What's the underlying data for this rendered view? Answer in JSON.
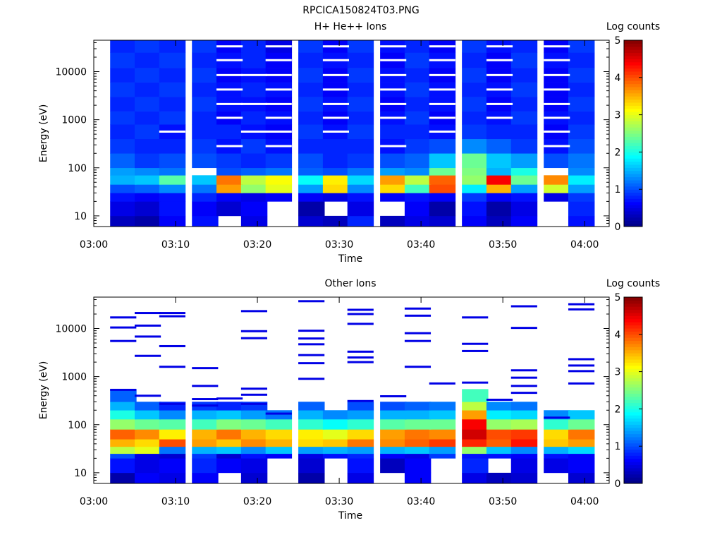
{
  "figure_title": "RPCICA150824T03.PNG",
  "chart_data": [
    {
      "type": "heatmap",
      "title": "H+ He++ Ions",
      "xlabel": "Time",
      "ylabel": "Energy (eV)",
      "yscale": "log",
      "xlim": [
        "03:00",
        "04:03"
      ],
      "ylim": [
        6,
        45000
      ],
      "xticks": [
        "03:00",
        "03:10",
        "03:20",
        "03:30",
        "03:40",
        "03:50",
        "04:00"
      ],
      "yticks": [
        "10",
        "100",
        "1000",
        "10000"
      ],
      "colorbar": {
        "label": "Log counts",
        "range": [
          0,
          5
        ],
        "ticks": [
          "0",
          "1",
          "2",
          "3",
          "4",
          "5"
        ]
      },
      "time_start": [
        "03:02",
        "03:05",
        "03:08",
        "03:12",
        "03:15",
        "03:18",
        "03:21",
        "03:25",
        "03:28",
        "03:31",
        "03:35",
        "03:38",
        "03:41",
        "03:45",
        "03:48",
        "03:51",
        "03:55",
        "03:58"
      ],
      "energy_bands": [
        {
          "range": [
            6,
            10
          ],
          "values": [
            0.3,
            0.2,
            0.6,
            0.7,
            null,
            0.5,
            null,
            0.4,
            0.3,
            0.8,
            0.3,
            0.5,
            0.4,
            0.6,
            0.3,
            0.6,
            null,
            0.7
          ]
        },
        {
          "range": [
            10,
            20
          ],
          "values": [
            0.5,
            0.4,
            0.7,
            0.6,
            0.4,
            0.6,
            null,
            0.2,
            null,
            0.5,
            null,
            0.6,
            0.2,
            0.7,
            0.2,
            0.5,
            null,
            0.8
          ]
        },
        {
          "range": [
            20,
            30
          ],
          "values": [
            0.7,
            0.6,
            0.7,
            0.8,
            0.6,
            0.5,
            0.6,
            0.6,
            0.5,
            0.7,
            0.6,
            0.7,
            0.6,
            0.9,
            0.6,
            0.7,
            0.5,
            0.9
          ]
        },
        {
          "range": [
            30,
            45
          ],
          "values": [
            1.0,
            1.1,
            1.3,
            1.2,
            3.6,
            2.6,
            3.0,
            1.4,
            3.3,
            1.3,
            3.3,
            2.2,
            4.0,
            1.8,
            3.5,
            1.4,
            2.9,
            1.4
          ]
        },
        {
          "range": [
            45,
            70
          ],
          "values": [
            1.5,
            1.6,
            2.3,
            1.6,
            3.8,
            2.8,
            3.1,
            1.9,
            3.2,
            1.7,
            3.6,
            2.8,
            3.9,
            2.6,
            4.4,
            2.4,
            3.7,
            1.8
          ]
        },
        {
          "range": [
            70,
            100
          ],
          "values": [
            1.4,
            1.3,
            1.2,
            null,
            1.0,
            1.1,
            1.2,
            1.1,
            1.0,
            1.2,
            1.4,
            1.3,
            2.4,
            2.5,
            1.5,
            2.0,
            null,
            1.3
          ]
        },
        {
          "range": [
            100,
            200
          ],
          "values": [
            1.1,
            0.9,
            1.0,
            1.0,
            0.9,
            0.8,
            0.9,
            1.0,
            0.8,
            0.9,
            1.0,
            1.1,
            1.6,
            2.4,
            1.6,
            1.4,
            1.0,
            1.2
          ]
        },
        {
          "range": [
            200,
            400
          ],
          "values": [
            0.9,
            0.8,
            0.8,
            0.9,
            0.7,
            0.9,
            0.7,
            0.8,
            0.8,
            0.8,
            0.7,
            0.9,
            1.0,
            1.3,
            1.1,
            0.9,
            0.7,
            1.0
          ]
        },
        {
          "range": [
            400,
            800
          ],
          "values": [
            0.8,
            0.9,
            0.7,
            0.8,
            0.8,
            0.7,
            0.6,
            0.9,
            0.7,
            0.9,
            0.8,
            0.8,
            0.7,
            0.9,
            0.8,
            0.8,
            0.6,
            0.9
          ]
        },
        {
          "range": [
            800,
            1500
          ],
          "values": [
            0.9,
            0.8,
            0.9,
            0.8,
            0.6,
            0.8,
            0.7,
            0.8,
            0.6,
            0.8,
            0.7,
            0.9,
            0.6,
            0.8,
            0.7,
            0.9,
            0.7,
            0.8
          ]
        },
        {
          "range": [
            1500,
            3000
          ],
          "values": [
            0.8,
            0.9,
            0.8,
            0.9,
            0.7,
            0.7,
            0.6,
            0.9,
            0.7,
            0.9,
            0.6,
            0.8,
            0.7,
            0.9,
            0.6,
            0.8,
            0.6,
            0.9
          ]
        },
        {
          "range": [
            3000,
            6000
          ],
          "values": [
            0.9,
            0.8,
            0.9,
            0.8,
            0.7,
            0.8,
            0.7,
            0.8,
            0.6,
            0.8,
            0.7,
            0.9,
            0.7,
            0.8,
            0.7,
            0.9,
            0.6,
            0.8
          ]
        },
        {
          "range": [
            6000,
            12000
          ],
          "values": [
            0.8,
            0.9,
            0.8,
            0.9,
            0.6,
            0.7,
            0.6,
            0.9,
            0.6,
            0.9,
            0.7,
            0.8,
            0.6,
            0.9,
            0.6,
            0.8,
            0.6,
            0.9
          ]
        },
        {
          "range": [
            12000,
            25000
          ],
          "values": [
            0.9,
            0.8,
            0.9,
            0.8,
            0.7,
            0.8,
            0.6,
            0.8,
            0.7,
            0.8,
            0.6,
            0.9,
            0.7,
            0.8,
            0.6,
            0.9,
            0.7,
            0.8
          ]
        },
        {
          "range": [
            25000,
            45000
          ],
          "values": [
            0.8,
            0.9,
            0.8,
            0.9,
            0.6,
            0.8,
            0.5,
            0.9,
            0.6,
            0.9,
            0.7,
            0.8,
            0.6,
            0.9,
            0.7,
            0.8,
            0.6,
            0.9
          ]
        }
      ]
    },
    {
      "type": "heatmap",
      "title": "Other Ions",
      "xlabel": "Time",
      "ylabel": "Energy (eV)",
      "yscale": "log",
      "xlim": [
        "03:00",
        "04:03"
      ],
      "ylim": [
        6,
        45000
      ],
      "xticks": [
        "03:00",
        "03:10",
        "03:20",
        "03:30",
        "03:40",
        "03:50",
        "04:00"
      ],
      "yticks": [
        "10",
        "100",
        "1000",
        "10000"
      ],
      "colorbar": {
        "label": "Log counts",
        "range": [
          0,
          5
        ],
        "ticks": [
          "0",
          "1",
          "2",
          "3",
          "4",
          "5"
        ]
      },
      "time_start": [
        "03:02",
        "03:05",
        "03:08",
        "03:12",
        "03:15",
        "03:18",
        "03:21",
        "03:25",
        "03:28",
        "03:31",
        "03:35",
        "03:38",
        "03:41",
        "03:45",
        "03:48",
        "03:51",
        "03:55",
        "03:58"
      ],
      "energy_bands": [
        {
          "range": [
            6,
            10
          ],
          "values": [
            0.2,
            0.6,
            0.5,
            0.6,
            null,
            0.4,
            null,
            0.2,
            null,
            0.5,
            null,
            0.6,
            null,
            0.5,
            0.3,
            0.4,
            null,
            0.4
          ]
        },
        {
          "range": [
            10,
            20
          ],
          "values": [
            0.7,
            0.5,
            0.6,
            0.8,
            0.6,
            0.5,
            null,
            0.4,
            null,
            0.7,
            0.3,
            0.6,
            null,
            0.8,
            null,
            0.5,
            0.5,
            0.6
          ]
        },
        {
          "range": [
            20,
            25
          ],
          "values": [
            1.0,
            0.5,
            0.4,
            0.9,
            0.4,
            0.7,
            0.6,
            0.5,
            0.7,
            0.8,
            0.6,
            0.5,
            0.9,
            0.7,
            0.7,
            0.6,
            0.7,
            0.6
          ]
        },
        {
          "range": [
            25,
            35
          ],
          "values": [
            2.8,
            3.0,
            1.2,
            1.5,
            1.6,
            1.3,
            1.6,
            1.4,
            1.5,
            1.4,
            1.5,
            1.6,
            1.4,
            2.6,
            1.6,
            1.3,
            1.5,
            1.7
          ]
        },
        {
          "range": [
            35,
            50
          ],
          "values": [
            3.5,
            3.3,
            4.0,
            3.6,
            3.4,
            3.7,
            3.5,
            3.3,
            3.4,
            3.8,
            3.7,
            3.9,
            4.1,
            4.2,
            3.9,
            4.3,
            3.4,
            3.6
          ]
        },
        {
          "range": [
            50,
            80
          ],
          "values": [
            3.9,
            3.7,
            3.2,
            3.5,
            3.8,
            3.5,
            3.3,
            3.2,
            3.0,
            3.3,
            3.6,
            3.8,
            3.7,
            4.6,
            4.0,
            4.1,
            3.3,
            3.8
          ]
        },
        {
          "range": [
            80,
            130
          ],
          "values": [
            2.6,
            2.4,
            2.3,
            2.2,
            2.5,
            2.4,
            2.2,
            2.1,
            1.9,
            2.1,
            2.3,
            2.4,
            2.4,
            4.4,
            2.6,
            2.7,
            2.1,
            2.4
          ]
        },
        {
          "range": [
            130,
            200
          ],
          "values": [
            2.0,
            1.6,
            1.3,
            1.5,
            1.6,
            1.4,
            1.2,
            1.5,
            1.3,
            1.4,
            1.5,
            1.5,
            1.6,
            3.6,
            1.8,
            1.7,
            1.3,
            1.6
          ]
        },
        {
          "range": [
            200,
            300
          ],
          "values": [
            1.5,
            1.1,
            0.8,
            0.9,
            0.8,
            0.9,
            null,
            1.1,
            null,
            1.0,
            1.0,
            1.1,
            1.2,
            2.8,
            1.3,
            1.2,
            null,
            null
          ]
        },
        {
          "range": [
            300,
            550
          ],
          "values": [
            1.1,
            null,
            null,
            null,
            null,
            null,
            null,
            null,
            null,
            null,
            null,
            null,
            null,
            2.2,
            null,
            null,
            null,
            null
          ]
        }
      ],
      "lines": [
        {
          "col": 0,
          "energies": [
            530,
            5500,
            10500,
            17000
          ]
        },
        {
          "col": 1,
          "energies": [
            400,
            2700,
            6800,
            11500,
            21000
          ]
        },
        {
          "col": 2,
          "energies": [
            270,
            1600,
            4300,
            18000,
            21000
          ]
        },
        {
          "col": 3,
          "energies": [
            250,
            340,
            640,
            1500
          ]
        },
        {
          "col": 4,
          "energies": [
            350
          ]
        },
        {
          "col": 5,
          "energies": [
            270,
            420,
            560,
            6300,
            8800,
            23000
          ]
        },
        {
          "col": 6,
          "energies": [
            170
          ]
        },
        {
          "col": 7,
          "energies": [
            900,
            1900,
            2800,
            4700,
            6200,
            9000,
            37000
          ]
        },
        {
          "col": 9,
          "energies": [
            310,
            2000,
            2500,
            3300,
            12500,
            20000,
            24500
          ]
        },
        {
          "col": 10,
          "energies": [
            390
          ]
        },
        {
          "col": 11,
          "energies": [
            1600,
            5500,
            8000,
            18500,
            26000
          ]
        },
        {
          "col": 12,
          "energies": [
            720
          ]
        },
        {
          "col": 13,
          "energies": [
            750,
            3400,
            4800,
            17000
          ]
        },
        {
          "col": 14,
          "energies": [
            330
          ]
        },
        {
          "col": 15,
          "energies": [
            460,
            640,
            950,
            1350,
            10300,
            29000
          ]
        },
        {
          "col": 16,
          "energies": [
            140
          ]
        },
        {
          "col": 17,
          "energies": [
            720,
            1300,
            1700,
            2300,
            25000,
            32000
          ]
        }
      ]
    }
  ]
}
